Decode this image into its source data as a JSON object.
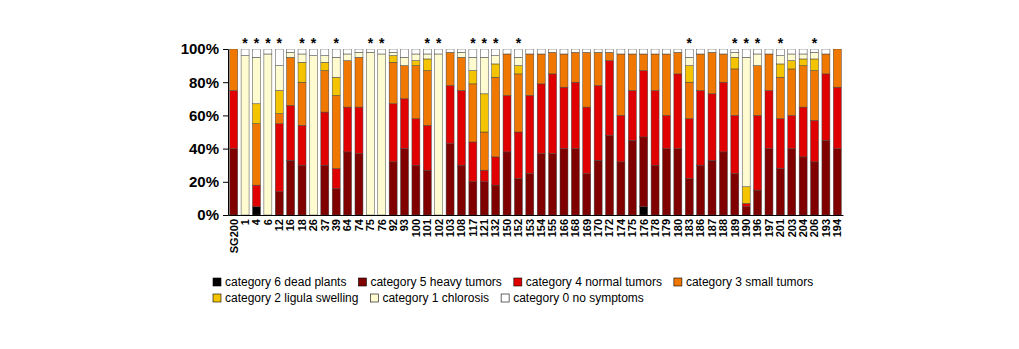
{
  "chart_data": {
    "type": "bar",
    "stacked": true,
    "grid": false,
    "categories": [
      "SG200",
      "1",
      "4",
      "6",
      "12",
      "16",
      "18",
      "26",
      "37",
      "39",
      "64",
      "74",
      "75",
      "76",
      "92",
      "93",
      "100",
      "101",
      "102",
      "103",
      "108",
      "117",
      "121",
      "132",
      "150",
      "152",
      "153",
      "154",
      "155",
      "166",
      "168",
      "169",
      "170",
      "172",
      "174",
      "175",
      "176",
      "178",
      "179",
      "180",
      "183",
      "186",
      "187",
      "188",
      "189",
      "190",
      "196",
      "197",
      "201",
      "203",
      "204",
      "206",
      "193",
      "194"
    ],
    "ylim": [
      0,
      100
    ],
    "yticks": [
      {
        "value": 0,
        "label": "0%"
      },
      {
        "value": 20,
        "label": "20%"
      },
      {
        "value": 40,
        "label": "40%"
      },
      {
        "value": 60,
        "label": "60%"
      },
      {
        "value": 80,
        "label": "80%"
      },
      {
        "value": 100,
        "label": "100%"
      }
    ],
    "series": [
      {
        "name": "category 6 dead plants",
        "color": "#000000",
        "values": [
          0,
          0,
          5,
          0,
          0,
          0,
          0,
          0,
          0,
          0,
          0,
          0,
          0,
          0,
          0,
          0,
          0,
          0,
          0,
          0,
          0,
          0,
          0,
          0,
          0,
          0,
          0,
          0,
          0,
          0,
          0,
          0,
          0,
          0,
          0,
          0,
          5,
          0,
          0,
          0,
          0,
          0,
          0,
          0,
          0,
          0,
          0,
          0,
          0,
          0,
          0,
          0,
          0,
          0
        ]
      },
      {
        "name": "category 5 heavy tumors",
        "color": "#800000",
        "values": [
          40,
          0,
          0,
          0,
          14,
          33,
          30,
          0,
          30,
          16,
          38,
          37,
          0,
          0,
          32,
          40,
          30,
          27,
          0,
          43,
          30,
          20,
          20,
          18,
          38,
          22,
          25,
          37,
          37,
          40,
          40,
          25,
          33,
          48,
          32,
          45,
          42,
          30,
          40,
          40,
          22,
          30,
          33,
          38,
          25,
          5,
          15,
          40,
          28,
          40,
          35,
          32,
          45,
          40
        ]
      },
      {
        "name": "category 4 normal tumors",
        "color": "#e00000",
        "values": [
          35,
          0,
          13,
          0,
          41,
          33,
          24,
          0,
          32,
          12,
          27,
          28,
          0,
          0,
          35,
          30,
          28,
          27,
          0,
          35,
          45,
          24,
          7,
          17,
          34,
          28,
          47,
          42,
          48,
          37,
          40,
          40,
          45,
          45,
          28,
          30,
          40,
          45,
          20,
          45,
          36,
          45,
          40,
          42,
          35,
          2,
          45,
          35,
          30,
          20,
          30,
          25,
          40,
          37
        ]
      },
      {
        "name": "category 3 small tumors",
        "color": "#f07800",
        "values": [
          25,
          0,
          37,
          0,
          6,
          29,
          26,
          0,
          25,
          44,
          28,
          30,
          0,
          0,
          25,
          20,
          32,
          33,
          0,
          20,
          20,
          35,
          23,
          48,
          25,
          35,
          25,
          18,
          13,
          20,
          18,
          33,
          20,
          5,
          37,
          22,
          10,
          22,
          37,
          13,
          22,
          22,
          25,
          17,
          28,
          0,
          30,
          22,
          25,
          28,
          25,
          30,
          12,
          23
        ]
      },
      {
        "name": "category 2 ligula swelling",
        "color": "#f5c400",
        "values": [
          0,
          0,
          12,
          0,
          14,
          0,
          12,
          0,
          5,
          11,
          0,
          0,
          0,
          0,
          4,
          0,
          3,
          7,
          0,
          0,
          0,
          8,
          23,
          8,
          0,
          5,
          0,
          0,
          0,
          0,
          0,
          0,
          0,
          0,
          0,
          0,
          0,
          0,
          0,
          0,
          10,
          0,
          0,
          0,
          7,
          10,
          0,
          0,
          8,
          5,
          4,
          7,
          0,
          0
        ]
      },
      {
        "name": "category 1 chlorosis",
        "color": "#fffbd0",
        "values": [
          0,
          96,
          28,
          97,
          15,
          3,
          5,
          96,
          4,
          12,
          4,
          3,
          98,
          97,
          2,
          5,
          4,
          3,
          97,
          0,
          3,
          8,
          22,
          5,
          0,
          5,
          0,
          0,
          0,
          0,
          0,
          0,
          0,
          0,
          0,
          0,
          0,
          0,
          0,
          0,
          5,
          0,
          0,
          0,
          3,
          78,
          7,
          0,
          5,
          4,
          3,
          4,
          0,
          0
        ]
      },
      {
        "name": "category 0 no symptoms",
        "color": "#ffffff",
        "values": [
          0,
          4,
          5,
          3,
          10,
          2,
          3,
          4,
          4,
          5,
          3,
          2,
          2,
          3,
          2,
          5,
          3,
          3,
          3,
          2,
          2,
          5,
          5,
          4,
          3,
          5,
          3,
          3,
          2,
          3,
          2,
          2,
          2,
          2,
          3,
          3,
          3,
          3,
          3,
          2,
          5,
          3,
          2,
          3,
          2,
          5,
          3,
          3,
          4,
          3,
          3,
          2,
          3,
          0
        ]
      }
    ],
    "annotations": [
      {
        "text": "*",
        "category": "1"
      },
      {
        "text": "*",
        "category": "4"
      },
      {
        "text": "*",
        "category": "6"
      },
      {
        "text": "*",
        "category": "12"
      },
      {
        "text": "*",
        "category": "18"
      },
      {
        "text": "*",
        "category": "26"
      },
      {
        "text": "*",
        "category": "39"
      },
      {
        "text": "*",
        "category": "75"
      },
      {
        "text": "*",
        "category": "76"
      },
      {
        "text": "*",
        "category": "101"
      },
      {
        "text": "*",
        "category": "102"
      },
      {
        "text": "*",
        "category": "117"
      },
      {
        "text": "*",
        "category": "121"
      },
      {
        "text": "*",
        "category": "132"
      },
      {
        "text": "*",
        "category": "152"
      },
      {
        "text": "*",
        "category": "183"
      },
      {
        "text": "*",
        "category": "189"
      },
      {
        "text": "*",
        "category": "190"
      },
      {
        "text": "*",
        "category": "196"
      },
      {
        "text": "*",
        "category": "201"
      },
      {
        "text": "*",
        "category": "206"
      }
    ]
  }
}
